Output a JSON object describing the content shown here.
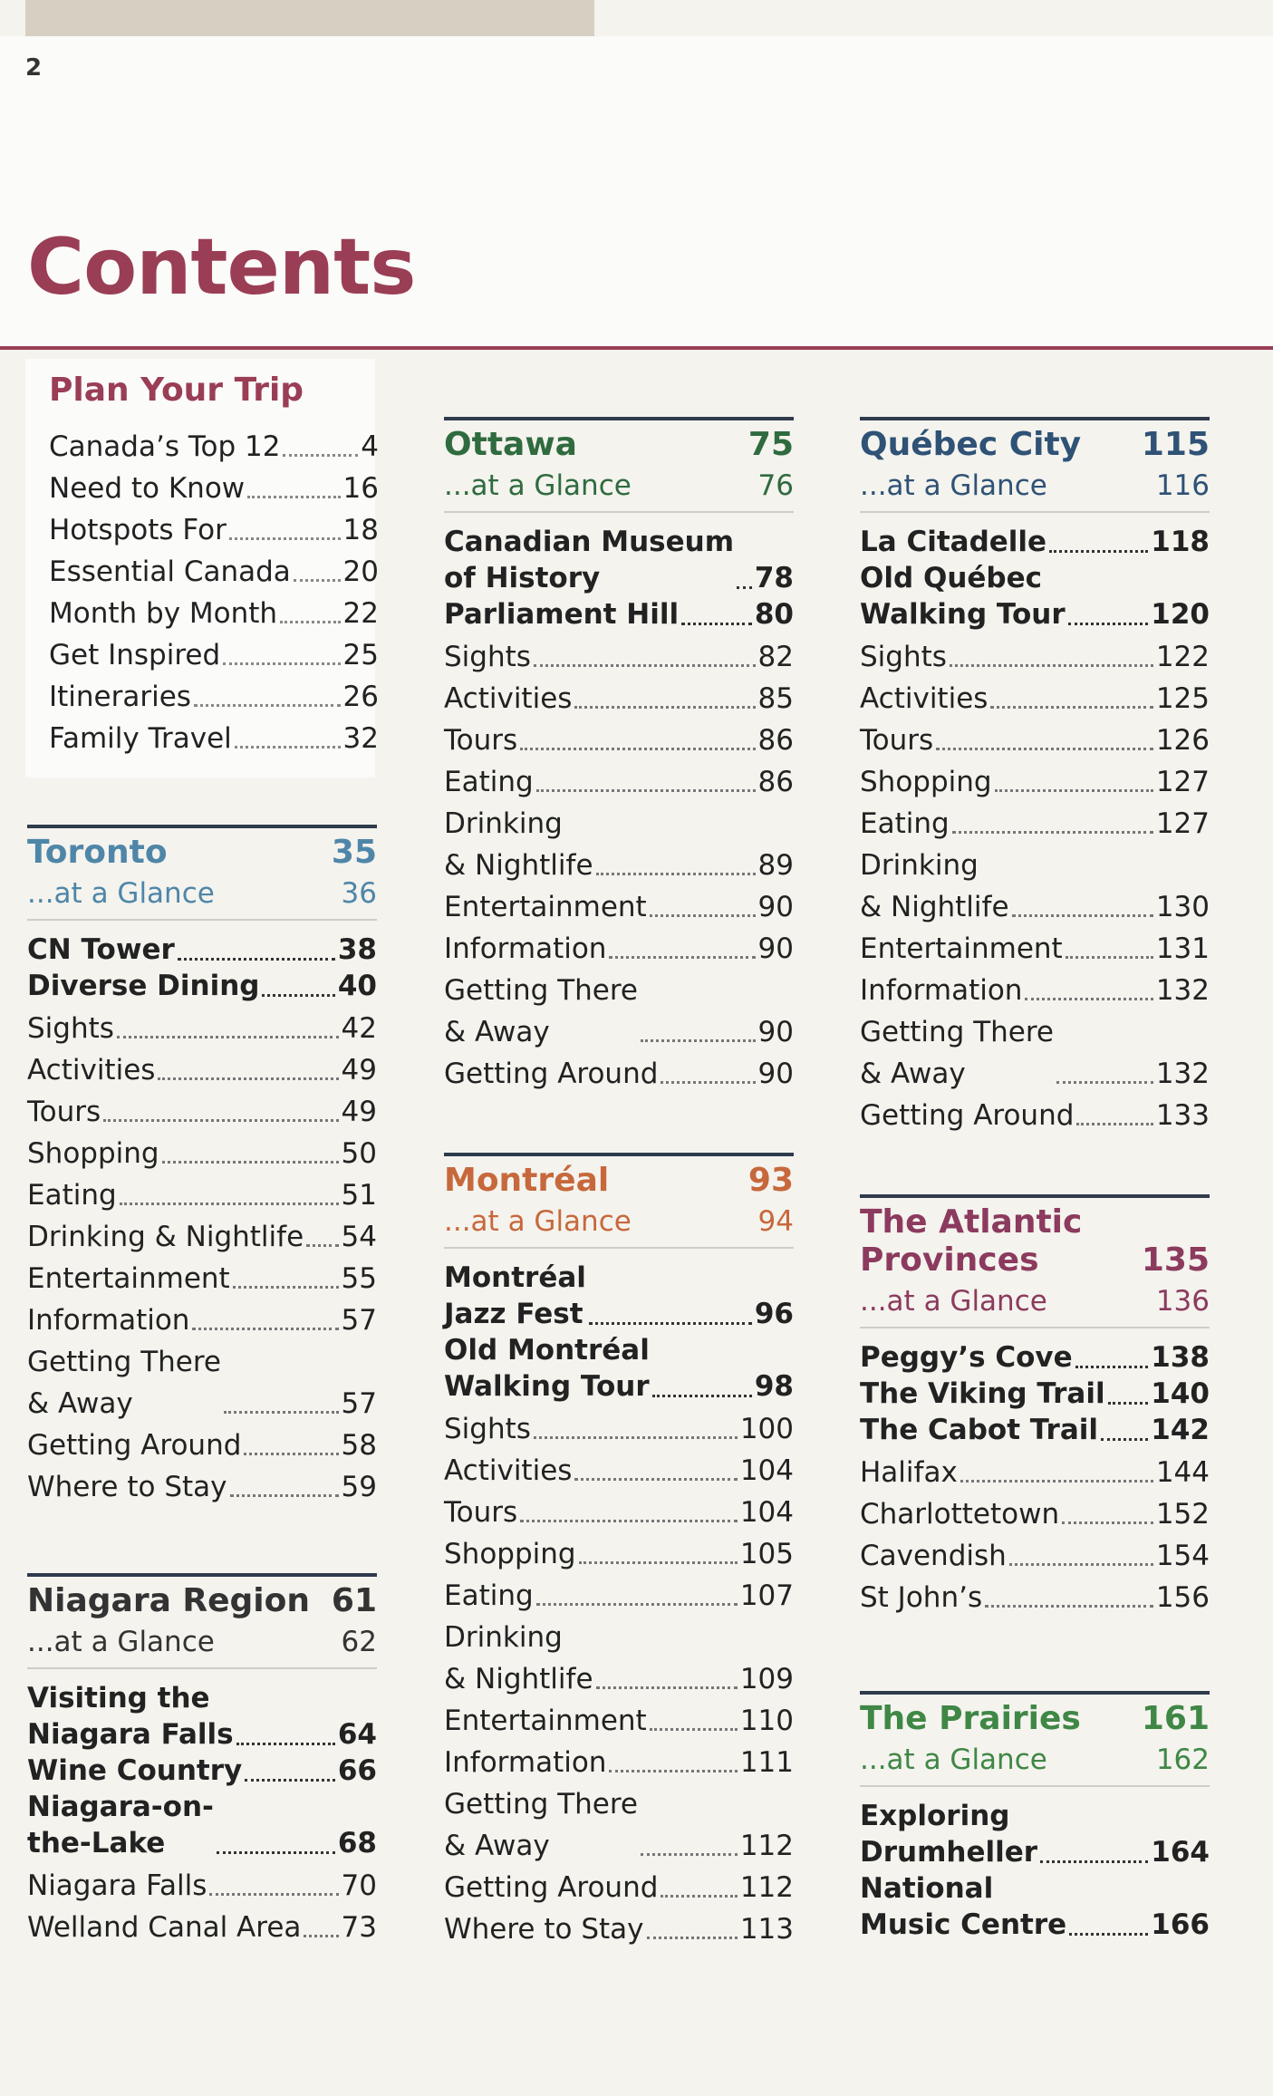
{
  "page_number": "2",
  "title": "Contents",
  "colors": {
    "title": "#9a3e55",
    "toronto": "#4f86a8",
    "ottawa": "#2f6b3e",
    "montreal": "#c7683c",
    "quebec": "#2f5276",
    "atlantic": "#8c3a5e",
    "prairies": "#3f8745",
    "niagara": "#333333"
  },
  "plan_your_trip": {
    "title": "Plan Your Trip",
    "entries": [
      {
        "label": "Canada’s Top 12",
        "page": "4"
      },
      {
        "label": "Need to Know",
        "page": "16"
      },
      {
        "label": "Hotspots For",
        "page": "18"
      },
      {
        "label": "Essential Canada",
        "page": "20"
      },
      {
        "label": "Month by Month",
        "page": "22"
      },
      {
        "label": "Get Inspired",
        "page": "25"
      },
      {
        "label": "Itineraries",
        "page": "26"
      },
      {
        "label": "Family Travel",
        "page": "32"
      }
    ]
  },
  "toronto": {
    "title": "Toronto",
    "page": "35",
    "glance_label": "...at a Glance",
    "glance_page": "36",
    "entries": [
      {
        "label": "CN Tower",
        "page": "38",
        "bold": true
      },
      {
        "label": "Diverse Dining",
        "page": "40",
        "bold": true
      },
      {
        "label": "Sights",
        "page": "42"
      },
      {
        "label": "Activities",
        "page": "49"
      },
      {
        "label": "Tours",
        "page": "49"
      },
      {
        "label": "Shopping",
        "page": "50"
      },
      {
        "label": "Eating",
        "page": "51"
      },
      {
        "label": "Drinking & Nightlife",
        "page": "54"
      },
      {
        "label": "Entertainment",
        "page": "55"
      },
      {
        "label": "Information",
        "page": "57"
      },
      {
        "label": "Getting There\n& Away",
        "page": "57"
      },
      {
        "label": "Getting Around",
        "page": "58"
      },
      {
        "label": "Where to Stay",
        "page": "59"
      }
    ]
  },
  "niagara": {
    "title": "Niagara Region",
    "page": "61",
    "glance_label": "...at a Glance",
    "glance_page": "62",
    "entries": [
      {
        "label": "Visiting the\nNiagara Falls",
        "page": "64",
        "bold": true
      },
      {
        "label": "Wine Country",
        "page": "66",
        "bold": true
      },
      {
        "label": "Niagara-on-\nthe-Lake",
        "page": "68",
        "bold": true
      },
      {
        "label": "Niagara Falls",
        "page": "70"
      },
      {
        "label": "Welland Canal Area",
        "page": "73"
      }
    ]
  },
  "ottawa": {
    "title": "Ottawa",
    "page": "75",
    "glance_label": "...at a Glance",
    "glance_page": "76",
    "entries": [
      {
        "label": "Canadian Museum\nof History",
        "page": "78",
        "bold": true
      },
      {
        "label": "Parliament Hill",
        "page": "80",
        "bold": true
      },
      {
        "label": "Sights",
        "page": "82"
      },
      {
        "label": "Activities",
        "page": "85"
      },
      {
        "label": "Tours",
        "page": "86"
      },
      {
        "label": "Eating",
        "page": "86"
      },
      {
        "label": "Drinking\n& Nightlife",
        "page": "89"
      },
      {
        "label": "Entertainment",
        "page": "90"
      },
      {
        "label": "Information",
        "page": "90"
      },
      {
        "label": "Getting There\n& Away",
        "page": "90"
      },
      {
        "label": "Getting Around",
        "page": "90"
      }
    ]
  },
  "montreal": {
    "title": "Montréal",
    "page": "93",
    "glance_label": "...at a Glance",
    "glance_page": "94",
    "entries": [
      {
        "label": "Montréal\nJazz Fest",
        "page": "96",
        "bold": true
      },
      {
        "label": "Old Montréal\nWalking Tour",
        "page": "98",
        "bold": true
      },
      {
        "label": "Sights",
        "page": "100"
      },
      {
        "label": "Activities",
        "page": "104"
      },
      {
        "label": "Tours",
        "page": "104"
      },
      {
        "label": "Shopping",
        "page": "105"
      },
      {
        "label": "Eating",
        "page": "107"
      },
      {
        "label": "Drinking\n& Nightlife",
        "page": "109"
      },
      {
        "label": "Entertainment",
        "page": "110"
      },
      {
        "label": "Information",
        "page": "111"
      },
      {
        "label": "Getting There\n& Away",
        "page": "112"
      },
      {
        "label": "Getting Around",
        "page": "112"
      },
      {
        "label": "Where to Stay",
        "page": "113"
      }
    ]
  },
  "quebec": {
    "title": "Québec City",
    "page": "115",
    "glance_label": "...at a Glance",
    "glance_page": "116",
    "entries": [
      {
        "label": "La Citadelle",
        "page": "118",
        "bold": true
      },
      {
        "label": "Old Québec\nWalking Tour",
        "page": "120",
        "bold": true
      },
      {
        "label": "Sights",
        "page": "122"
      },
      {
        "label": "Activities",
        "page": "125"
      },
      {
        "label": "Tours",
        "page": "126"
      },
      {
        "label": "Shopping",
        "page": "127"
      },
      {
        "label": "Eating",
        "page": "127"
      },
      {
        "label": "Drinking\n& Nightlife",
        "page": "130"
      },
      {
        "label": "Entertainment",
        "page": "131"
      },
      {
        "label": "Information",
        "page": "132"
      },
      {
        "label": "Getting There\n& Away",
        "page": "132"
      },
      {
        "label": "Getting Around",
        "page": "133"
      }
    ]
  },
  "atlantic": {
    "title": "The Atlantic\nProvinces",
    "page": "135",
    "glance_label": "...at a Glance",
    "glance_page": "136",
    "entries": [
      {
        "label": "Peggy’s Cove",
        "page": "138",
        "bold": true
      },
      {
        "label": "The Viking Trail",
        "page": "140",
        "bold": true
      },
      {
        "label": "The Cabot Trail",
        "page": "142",
        "bold": true
      },
      {
        "label": "Halifax",
        "page": "144"
      },
      {
        "label": "Charlottetown",
        "page": "152"
      },
      {
        "label": "Cavendish",
        "page": "154"
      },
      {
        "label": "St John’s",
        "page": "156"
      }
    ]
  },
  "prairies": {
    "title": "The Prairies",
    "page": "161",
    "glance_label": "...at a Glance",
    "glance_page": "162",
    "entries": [
      {
        "label": "Exploring\nDrumheller",
        "page": "164",
        "bold": true
      },
      {
        "label": "National\nMusic Centre",
        "page": "166",
        "bold": true
      }
    ]
  }
}
